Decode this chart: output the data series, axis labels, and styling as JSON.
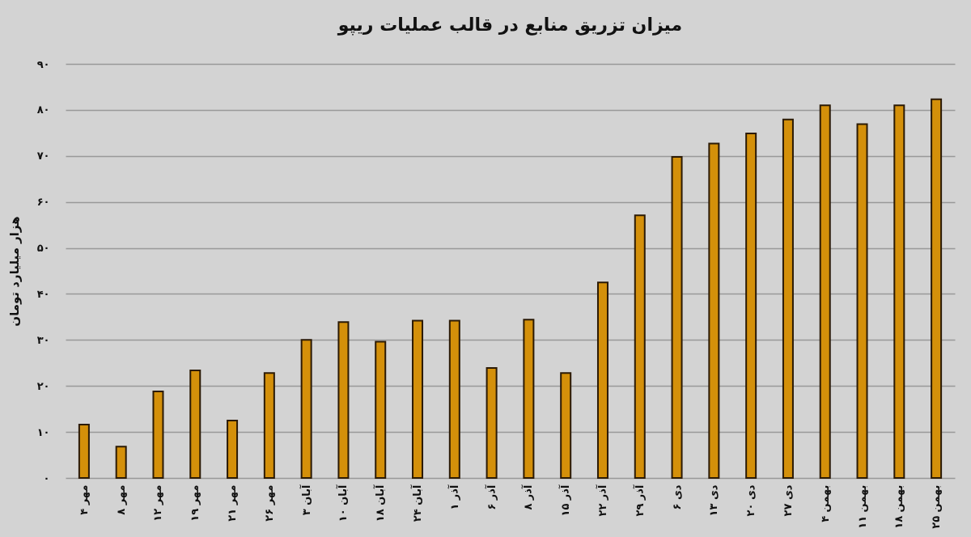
{
  "chart_data": {
    "type": "bar",
    "title": "میزان تزریق منابع در قالب عملیات ریپو",
    "ylabel": "هزار میلیارد تومان",
    "categories": [
      "۴ مهر",
      "۸ مهر",
      "۱۲ مهر",
      "۱۹ مهر",
      "۲۱ مهر",
      "۲۶ مهر",
      "۳ آبان",
      "۱۰ آبان",
      "۱۸ آبان",
      "۲۴ آبان",
      "۱ آذر",
      "۶ آذر",
      "۸ آذر",
      "۱۵ آذر",
      "۲۲ آذر",
      "۲۹ آذر",
      "۶ دی",
      "۱۳ دی",
      "۲۰ دی",
      "۲۷ دی",
      "۴ بهمن",
      "۱۱ بهمن",
      "۱۸ بهمن",
      "۲۵ بهمن"
    ],
    "values": [
      11.6,
      6.8,
      18.8,
      23.4,
      12.5,
      22.8,
      30.0,
      33.9,
      29.6,
      34.2,
      34.2,
      23.9,
      34.4,
      22.8,
      42.5,
      57.1,
      69.8,
      72.7,
      74.9,
      77.9,
      81.0,
      76.9,
      81.0,
      82.3
    ],
    "color": "#d4900a",
    "ylim": [
      0,
      90
    ],
    "yticks": [
      {
        "value": 0,
        "label": "۰"
      },
      {
        "value": 10,
        "label": "۱۰"
      },
      {
        "value": 20,
        "label": "۲۰"
      },
      {
        "value": 30,
        "label": "۳۰"
      },
      {
        "value": 40,
        "label": "۴۰"
      },
      {
        "value": 50,
        "label": "۵۰"
      },
      {
        "value": 60,
        "label": "۶۰"
      },
      {
        "value": 70,
        "label": "۷۰"
      },
      {
        "value": 80,
        "label": "۸۰"
      },
      {
        "value": 90,
        "label": "۹۰"
      }
    ],
    "grid": "y"
  }
}
